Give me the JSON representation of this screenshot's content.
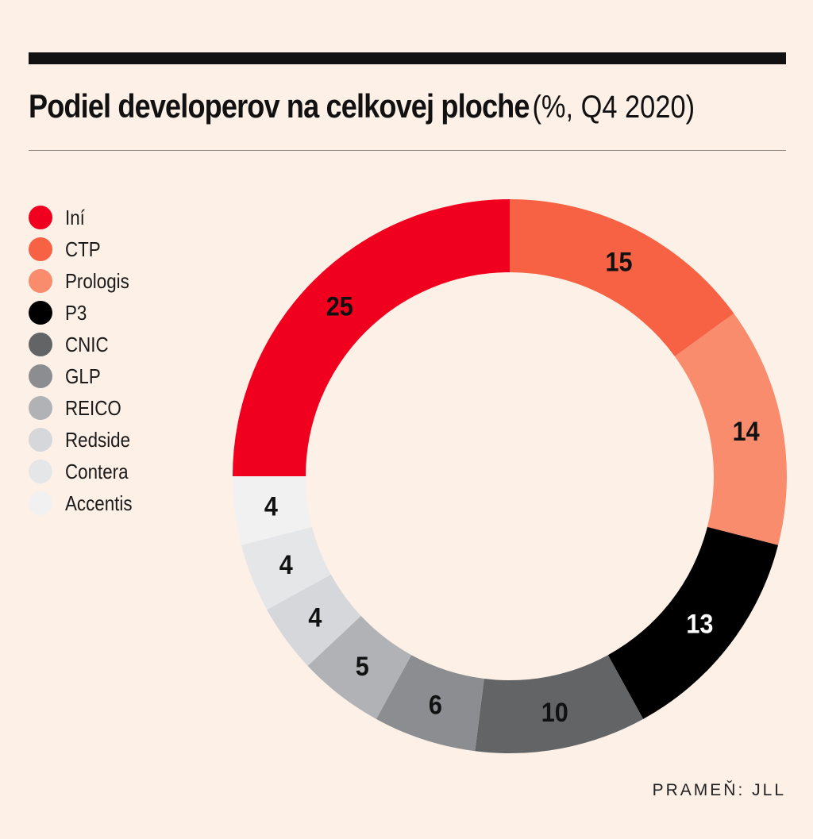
{
  "title": {
    "main": "Podiel developerov na celkovej ploche",
    "sub": "(%, Q4 2020)"
  },
  "source": "PRAMEŇ: JLL",
  "chart_data": {
    "type": "pie",
    "variant": "donut",
    "title": "Podiel developerov na celkovej ploche (%, Q4 2020)",
    "legend_position": "left",
    "categories": [
      "Iní",
      "CTP",
      "Prologis",
      "P3",
      "CNIC",
      "GLP",
      "REICO",
      "Redside",
      "Contera",
      "Accentis"
    ],
    "values": [
      25,
      15,
      14,
      13,
      10,
      6,
      5,
      4,
      4,
      4
    ],
    "colors": [
      "#f0001e",
      "#f66243",
      "#f88c6d",
      "#000000",
      "#636466",
      "#8c8d90",
      "#b1b2b5",
      "#d6d7da",
      "#e5e6e8",
      "#f1f1f2"
    ],
    "label_colors": [
      "#111111",
      "#111111",
      "#111111",
      "#ffffff",
      "#111111",
      "#111111",
      "#111111",
      "#111111",
      "#111111",
      "#111111"
    ],
    "draw_order": [
      1,
      2,
      3,
      4,
      5,
      6,
      7,
      8,
      9,
      0
    ]
  }
}
